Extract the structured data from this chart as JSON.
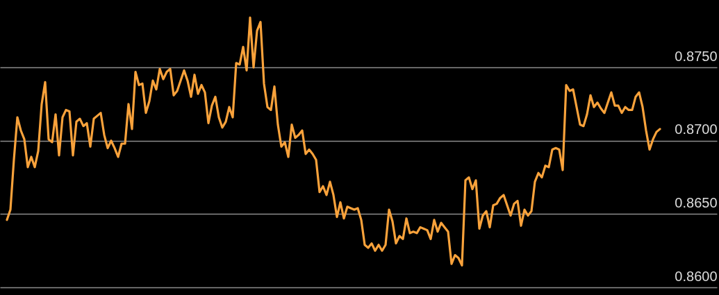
{
  "chart_data": {
    "type": "line",
    "categories": [
      null,
      null,
      null,
      null,
      null,
      null,
      null,
      null,
      null,
      null,
      null,
      null,
      null,
      null,
      null,
      null,
      null,
      null,
      null,
      null,
      null,
      null,
      null,
      null,
      null,
      null,
      null,
      null,
      null,
      null,
      null,
      null,
      null,
      null,
      null,
      null,
      null,
      null,
      null,
      null,
      null,
      null,
      null,
      null,
      null,
      null,
      null,
      null,
      null,
      null,
      null,
      null,
      null,
      null,
      null,
      null,
      null,
      null,
      null,
      null,
      null,
      null,
      null,
      null,
      null,
      null,
      null,
      null,
      null,
      null,
      null,
      null,
      null,
      null,
      null,
      null,
      null,
      null,
      null,
      null,
      null,
      null,
      null,
      null,
      null,
      null,
      null,
      null,
      null,
      null,
      null,
      null,
      null,
      null,
      null,
      null,
      null,
      null,
      null,
      null,
      null,
      null,
      null,
      null,
      null,
      null,
      null,
      null,
      null,
      null,
      null,
      null,
      null,
      null,
      null,
      null,
      null,
      null,
      null,
      null,
      null,
      null,
      null,
      null,
      null,
      null,
      null,
      null,
      null,
      null,
      null,
      null,
      null,
      null,
      null,
      null,
      null,
      null,
      null,
      null,
      null,
      null,
      null,
      null,
      null,
      null,
      null,
      null,
      null,
      null,
      null,
      null,
      null,
      null,
      null,
      null,
      null,
      null,
      null,
      null,
      null,
      null,
      null,
      null,
      null,
      null,
      null,
      null,
      null,
      null,
      null,
      null,
      null,
      null,
      null,
      null,
      null,
      null,
      null,
      null,
      null,
      null,
      null,
      null,
      null,
      null,
      null,
      null,
      null
    ],
    "values": [
      0.8646,
      0.8653,
      0.8687,
      0.8716,
      0.8707,
      0.8701,
      0.8682,
      0.8689,
      0.8682,
      0.8693,
      0.8725,
      0.874,
      0.8701,
      0.8699,
      0.8718,
      0.869,
      0.8716,
      0.8721,
      0.872,
      0.869,
      0.8713,
      0.8715,
      0.871,
      0.8712,
      0.8696,
      0.8715,
      0.8717,
      0.8719,
      0.8704,
      0.8695,
      0.87,
      0.8695,
      0.8689,
      0.8698,
      0.8698,
      0.8725,
      0.8708,
      0.8747,
      0.8738,
      0.8739,
      0.8719,
      0.8727,
      0.8741,
      0.8735,
      0.8749,
      0.8742,
      0.8747,
      0.8749,
      0.8731,
      0.8734,
      0.8741,
      0.8748,
      0.8741,
      0.873,
      0.8745,
      0.8732,
      0.8738,
      0.8733,
      0.8712,
      0.8724,
      0.873,
      0.8716,
      0.8709,
      0.8713,
      0.8723,
      0.8716,
      0.8753,
      0.8752,
      0.8764,
      0.8748,
      0.8784,
      0.875,
      0.8775,
      0.8781,
      0.8739,
      0.8723,
      0.8721,
      0.8737,
      0.8711,
      0.8696,
      0.8699,
      0.8689,
      0.8711,
      0.8702,
      0.8704,
      0.8707,
      0.8691,
      0.8694,
      0.8691,
      0.8687,
      0.8665,
      0.8669,
      0.8663,
      0.8672,
      0.8663,
      0.8648,
      0.8658,
      0.8647,
      0.8655,
      0.8654,
      0.8653,
      0.8654,
      0.8646,
      0.8629,
      0.8627,
      0.863,
      0.8625,
      0.8629,
      0.8625,
      0.8629,
      0.8653,
      0.8645,
      0.863,
      0.8635,
      0.8633,
      0.8647,
      0.8637,
      0.8638,
      0.8637,
      0.8641,
      0.864,
      0.8639,
      0.8633,
      0.8646,
      0.8638,
      0.8644,
      0.8641,
      0.8638,
      0.8616,
      0.8622,
      0.862,
      0.8615,
      0.8673,
      0.8675,
      0.8667,
      0.8673,
      0.864,
      0.8649,
      0.8652,
      0.8641,
      0.8656,
      0.8657,
      0.8661,
      0.8663,
      0.8656,
      0.8649,
      0.8657,
      0.8659,
      0.8642,
      0.8653,
      0.8649,
      0.8652,
      0.8672,
      0.8678,
      0.8675,
      0.8683,
      0.8682,
      0.8694,
      0.8695,
      0.8694,
      0.868,
      0.8738,
      0.8734,
      0.8735,
      0.8723,
      0.8711,
      0.871,
      0.8718,
      0.8731,
      0.8723,
      0.8726,
      0.8722,
      0.8719,
      0.8726,
      0.8733,
      0.8724,
      0.8724,
      0.8719,
      0.8723,
      0.8721,
      0.8721,
      0.873,
      0.8733,
      0.8723,
      0.8707,
      0.8694,
      0.8701,
      0.8706,
      0.8708
    ],
    "color": "#f9a23b",
    "ylim": [
      0.86,
      0.8796
    ],
    "yticks": [
      {
        "value": 0.86,
        "label": "0.8600"
      },
      {
        "value": 0.865,
        "label": "0.8650"
      },
      {
        "value": 0.87,
        "label": "0.8700"
      },
      {
        "value": 0.875,
        "label": "0.8750"
      }
    ],
    "grid": "y",
    "tick_labels": "y"
  }
}
